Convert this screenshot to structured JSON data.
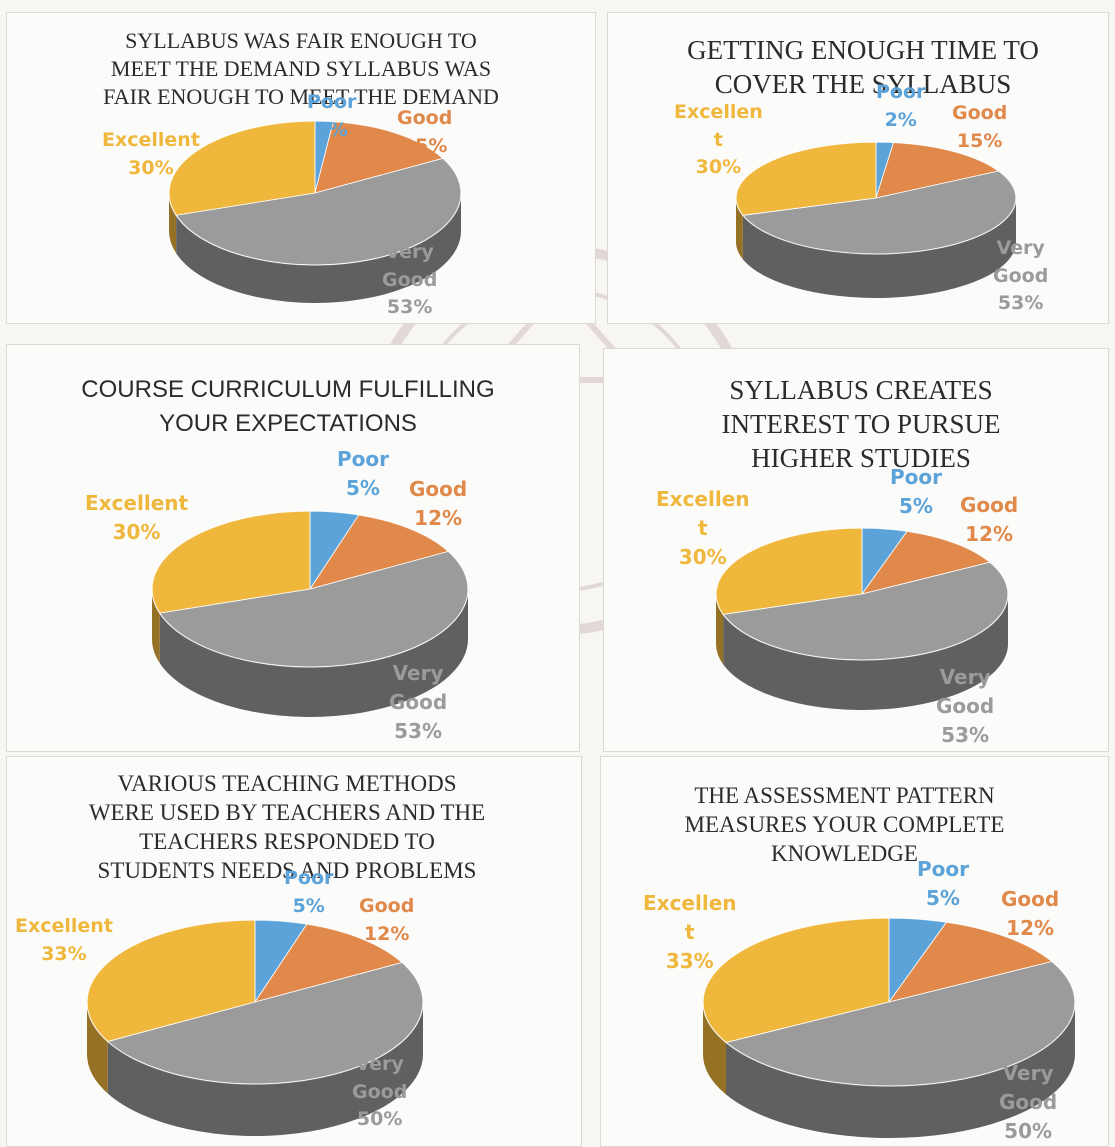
{
  "colors": {
    "Poor": "#5ba3d9",
    "Good": "#e0894a",
    "Very Good": "#9b9b9b",
    "Excellent": "#f0b73d"
  },
  "chart_data": [
    {
      "type": "pie",
      "title": "SYLLABUS WAS FAIR ENOUGH TO\nMEET THE DEMAND SYLLABUS WAS\nFAIR ENOUGH TO MEET THE DEMAND",
      "slices": [
        {
          "name": "Poor",
          "value": 2,
          "label": [
            "Poor",
            "2%"
          ]
        },
        {
          "name": "Good",
          "value": 15,
          "label": [
            "Good",
            "15%"
          ]
        },
        {
          "name": "Very Good",
          "value": 53,
          "label": [
            "Very",
            "Good",
            "53%"
          ]
        },
        {
          "name": "Excellent",
          "value": 30,
          "label": [
            "Excellent",
            "30%"
          ]
        }
      ]
    },
    {
      "type": "pie",
      "title": "GETTING ENOUGH TIME TO\nCOVER THE SYLLABUS",
      "slices": [
        {
          "name": "Poor",
          "value": 2,
          "label": [
            "Poor",
            "2%"
          ]
        },
        {
          "name": "Good",
          "value": 15,
          "label": [
            "Good",
            "15%"
          ]
        },
        {
          "name": "Very Good",
          "value": 53,
          "label": [
            "Very",
            "Good",
            "53%"
          ]
        },
        {
          "name": "Excellent",
          "value": 30,
          "label": [
            "Excellen",
            "t",
            "30%"
          ]
        }
      ]
    },
    {
      "type": "pie",
      "title": "COURSE CURRICULUM FULFILLING\nYOUR EXPECTATIONS",
      "slices": [
        {
          "name": "Poor",
          "value": 5,
          "label": [
            "Poor",
            "5%"
          ]
        },
        {
          "name": "Good",
          "value": 12,
          "label": [
            "Good",
            "12%"
          ]
        },
        {
          "name": "Very Good",
          "value": 53,
          "label": [
            "Very",
            "Good",
            "53%"
          ]
        },
        {
          "name": "Excellent",
          "value": 30,
          "label": [
            "Excellent",
            "30%"
          ]
        }
      ]
    },
    {
      "type": "pie",
      "title": "SYLLABUS CREATES\nINTEREST TO PURSUE\nHIGHER STUDIES",
      "slices": [
        {
          "name": "Poor",
          "value": 5,
          "label": [
            "Poor",
            "5%"
          ]
        },
        {
          "name": "Good",
          "value": 12,
          "label": [
            "Good",
            "12%"
          ]
        },
        {
          "name": "Very Good",
          "value": 53,
          "label": [
            "Very",
            "Good",
            "53%"
          ]
        },
        {
          "name": "Excellent",
          "value": 30,
          "label": [
            "Excellen",
            "t",
            "30%"
          ]
        }
      ]
    },
    {
      "type": "pie",
      "title": "VARIOUS TEACHING METHODS\nWERE USED BY TEACHERS AND THE\nTEACHERS RESPONDED TO\nSTUDENTS NEEDS AND PROBLEMS",
      "slices": [
        {
          "name": "Poor",
          "value": 5,
          "label": [
            "Poor",
            "5%"
          ]
        },
        {
          "name": "Good",
          "value": 12,
          "label": [
            "Good",
            "12%"
          ]
        },
        {
          "name": "Very Good",
          "value": 50,
          "label": [
            "Very",
            "Good",
            "50%"
          ]
        },
        {
          "name": "Excellent",
          "value": 33,
          "label": [
            "Excellent",
            "33%"
          ]
        }
      ]
    },
    {
      "type": "pie",
      "title": "THE ASSESSMENT PATTERN\nMEASURES YOUR COMPLETE\nKNOWLEDGE",
      "slices": [
        {
          "name": "Poor",
          "value": 5,
          "label": [
            "Poor",
            "5%"
          ]
        },
        {
          "name": "Good",
          "value": 12,
          "label": [
            "Good",
            "12%"
          ]
        },
        {
          "name": "Very Good",
          "value": 50,
          "label": [
            "Very",
            "Good",
            "50%"
          ]
        },
        {
          "name": "Excellent",
          "value": 33,
          "label": [
            "Excellen",
            "t",
            "33%"
          ]
        }
      ]
    }
  ]
}
